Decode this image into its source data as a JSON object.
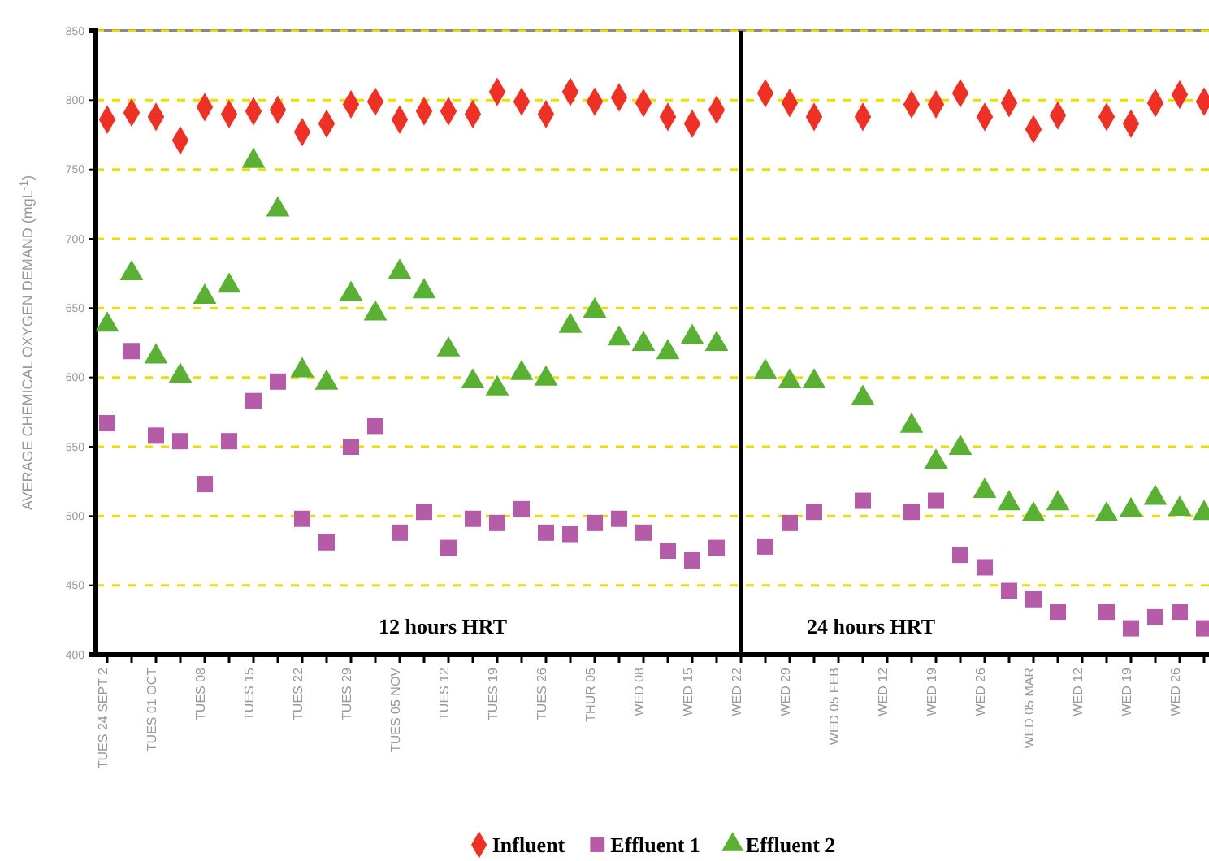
{
  "chart_data": {
    "type": "scatter",
    "ylabel": "AVERAGE CHEMICAL OXYGEN DEMAND (mgL$^{-1}$)",
    "categories": [
      "TUES 24 SEPT 2",
      null,
      "TUES 01 OCT",
      null,
      "TUES 08",
      null,
      "TUES 15",
      null,
      "TUES 22",
      null,
      "TUES 29",
      null,
      "TUES 05 NOV",
      null,
      "TUES 12",
      null,
      "TUES 19",
      null,
      "TUES 26",
      null,
      "THUR 05",
      null,
      "WED 08",
      null,
      "WED 15",
      null,
      "WED 22",
      null,
      "WED 29",
      null,
      "WED 05 FEB",
      null,
      "WED 12",
      null,
      "WED 19",
      null,
      "WED 26",
      null,
      "WED 05 MAR",
      null,
      "WED 12",
      null,
      "WED 19",
      null,
      "WED 26",
      null
    ],
    "series": [
      {
        "name": "Influent",
        "color": "#ee3124",
        "marker": "diamond",
        "values": [
          786,
          791,
          788,
          771,
          795,
          790,
          792,
          793,
          777,
          783,
          797,
          799,
          786,
          792,
          792,
          790,
          806,
          799,
          790,
          806,
          799,
          802,
          798,
          788,
          783,
          793,
          null,
          805,
          798,
          788,
          null,
          788,
          null,
          797,
          797,
          805,
          788,
          798,
          779,
          789,
          null,
          788,
          783,
          798,
          804,
          799
        ]
      },
      {
        "name": "Effluent 1",
        "color": "#b55ba8",
        "marker": "square",
        "values": [
          567,
          619,
          558,
          554,
          523,
          554,
          583,
          597,
          498,
          481,
          550,
          565,
          488,
          503,
          477,
          498,
          495,
          505,
          488,
          487,
          495,
          498,
          488,
          475,
          468,
          477,
          null,
          478,
          495,
          503,
          null,
          511,
          null,
          503,
          511,
          472,
          463,
          446,
          440,
          431,
          null,
          431,
          419,
          427,
          431,
          419
        ]
      },
      {
        "name": "Effluent 2",
        "color": "#5ab033",
        "marker": "triangle",
        "values": [
          638,
          675,
          615,
          601,
          658,
          666,
          756,
          721,
          605,
          596,
          660,
          646,
          676,
          662,
          620,
          597,
          592,
          603,
          599,
          637,
          648,
          628,
          624,
          618,
          629,
          624,
          null,
          604,
          597,
          597,
          null,
          585,
          null,
          565,
          539,
          549,
          518,
          509,
          501,
          509,
          null,
          501,
          504,
          513,
          505,
          502
        ]
      }
    ],
    "ylim": [
      400,
      850
    ],
    "yticks": [
      400,
      450,
      500,
      550,
      600,
      650,
      700,
      750,
      800,
      850
    ],
    "grid": "y",
    "legend": "bottom",
    "ref_lines": [
      {
        "axis": "x",
        "value": "WED 22",
        "color": "#000000"
      }
    ],
    "annotations": [
      "12 hours HRT",
      "24 hours HRT"
    ]
  }
}
